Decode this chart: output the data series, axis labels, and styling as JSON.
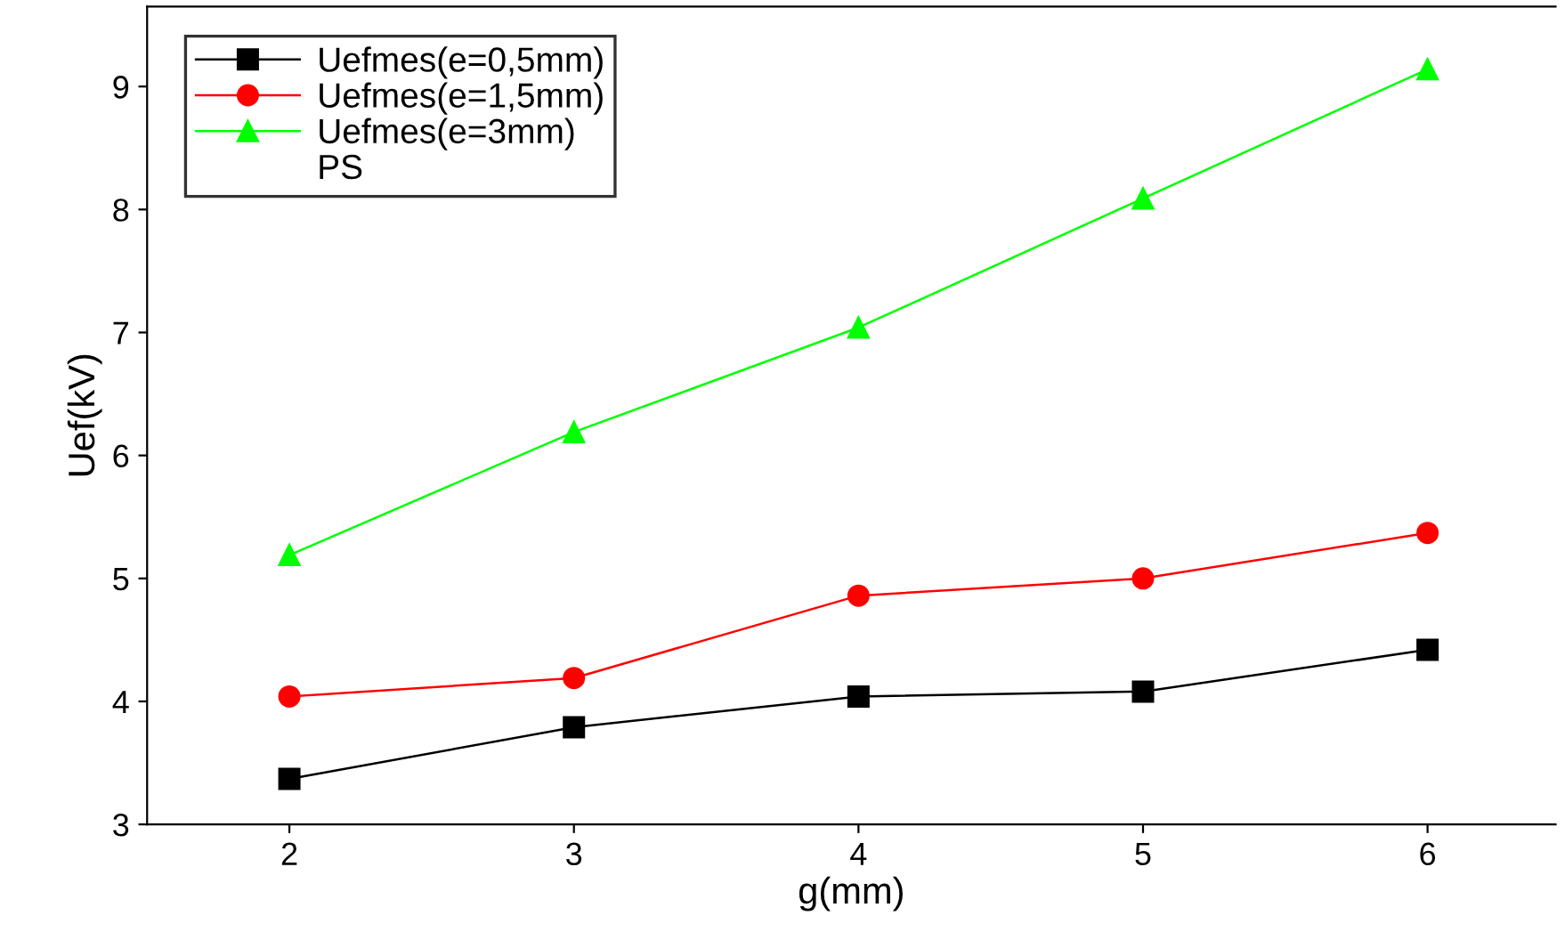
{
  "chart_data": {
    "type": "line",
    "xlabel": "g(mm)",
    "ylabel": "Uef(kV)",
    "x": [
      2,
      3,
      4,
      5,
      6
    ],
    "series": [
      {
        "name": "Uefmes(e=0,5mm)",
        "color": "#000000",
        "marker": "square",
        "values": [
          3.37,
          3.79,
          4.04,
          4.08,
          4.42
        ]
      },
      {
        "name": "Uefmes(e=1,5mm)",
        "color": "#ff0000",
        "marker": "circle",
        "values": [
          4.04,
          4.19,
          4.86,
          5.0,
          5.37
        ]
      },
      {
        "name": "Uefmes(e=3mm)",
        "color": "#00ff00",
        "marker": "triangle",
        "values": [
          5.19,
          6.19,
          7.04,
          8.09,
          9.14
        ]
      }
    ],
    "annotations": [
      "PS"
    ],
    "xlim": [
      1.5,
      6.45
    ],
    "ylim": [
      3,
      9.65
    ],
    "xticks": [
      2,
      3,
      4,
      5,
      6
    ],
    "yticks": [
      3,
      4,
      5,
      6,
      7,
      8,
      9
    ],
    "legend": "top left",
    "grid": false,
    "line_style": "solid"
  }
}
